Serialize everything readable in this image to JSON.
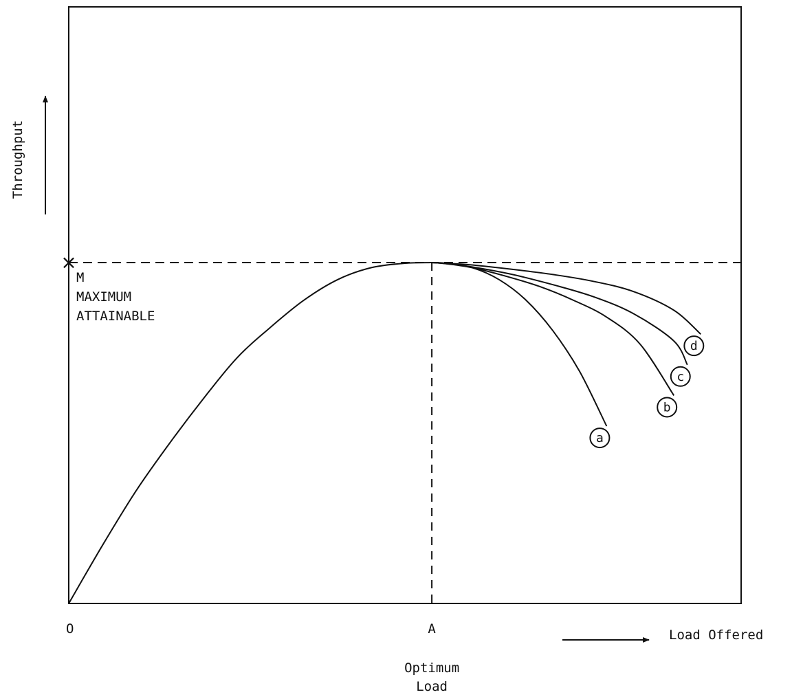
{
  "chart_data": {
    "type": "line",
    "ylabel": "Throughput",
    "xlabel": "Load Offered",
    "origin_label": "O",
    "optimum": {
      "tick_label": "A",
      "caption_line1": "Optimum",
      "caption_line2": "Load",
      "x": 0.54
    },
    "maximum": {
      "marker": "×",
      "label_line1": "M",
      "label_line2": "MAXIMUM",
      "label_line3": "ATTAINABLE",
      "y": 1.0
    },
    "xlim": [
      0,
      1
    ],
    "ylim": [
      0,
      1.75
    ],
    "grid": false,
    "legend": "none",
    "main_curve": {
      "x": [
        0,
        0.05,
        0.1,
        0.15,
        0.2,
        0.25,
        0.3,
        0.35,
        0.4,
        0.45,
        0.5,
        0.54
      ],
      "y": [
        0,
        0.17,
        0.33,
        0.47,
        0.6,
        0.72,
        0.81,
        0.89,
        0.95,
        0.985,
        0.998,
        1.0
      ]
    },
    "series": [
      {
        "name": "a",
        "x": [
          0.54,
          0.56,
          0.6,
          0.64,
          0.68,
          0.72,
          0.76,
          0.8
        ],
        "y": [
          1.0,
          0.998,
          0.985,
          0.95,
          0.89,
          0.8,
          0.68,
          0.52
        ]
      },
      {
        "name": "b",
        "x": [
          0.54,
          0.56,
          0.6,
          0.65,
          0.7,
          0.75,
          0.8,
          0.85,
          0.9
        ],
        "y": [
          1.0,
          0.997,
          0.985,
          0.96,
          0.93,
          0.89,
          0.84,
          0.76,
          0.61
        ]
      },
      {
        "name": "c",
        "x": [
          0.54,
          0.56,
          0.6,
          0.66,
          0.72,
          0.78,
          0.84,
          0.9,
          0.92
        ],
        "y": [
          1.0,
          0.997,
          0.987,
          0.965,
          0.935,
          0.9,
          0.85,
          0.77,
          0.7
        ]
      },
      {
        "name": "d",
        "x": [
          0.54,
          0.56,
          0.6,
          0.66,
          0.72,
          0.78,
          0.84,
          0.9,
          0.94
        ],
        "y": [
          1.0,
          0.998,
          0.993,
          0.98,
          0.965,
          0.945,
          0.915,
          0.86,
          0.79
        ]
      }
    ]
  }
}
